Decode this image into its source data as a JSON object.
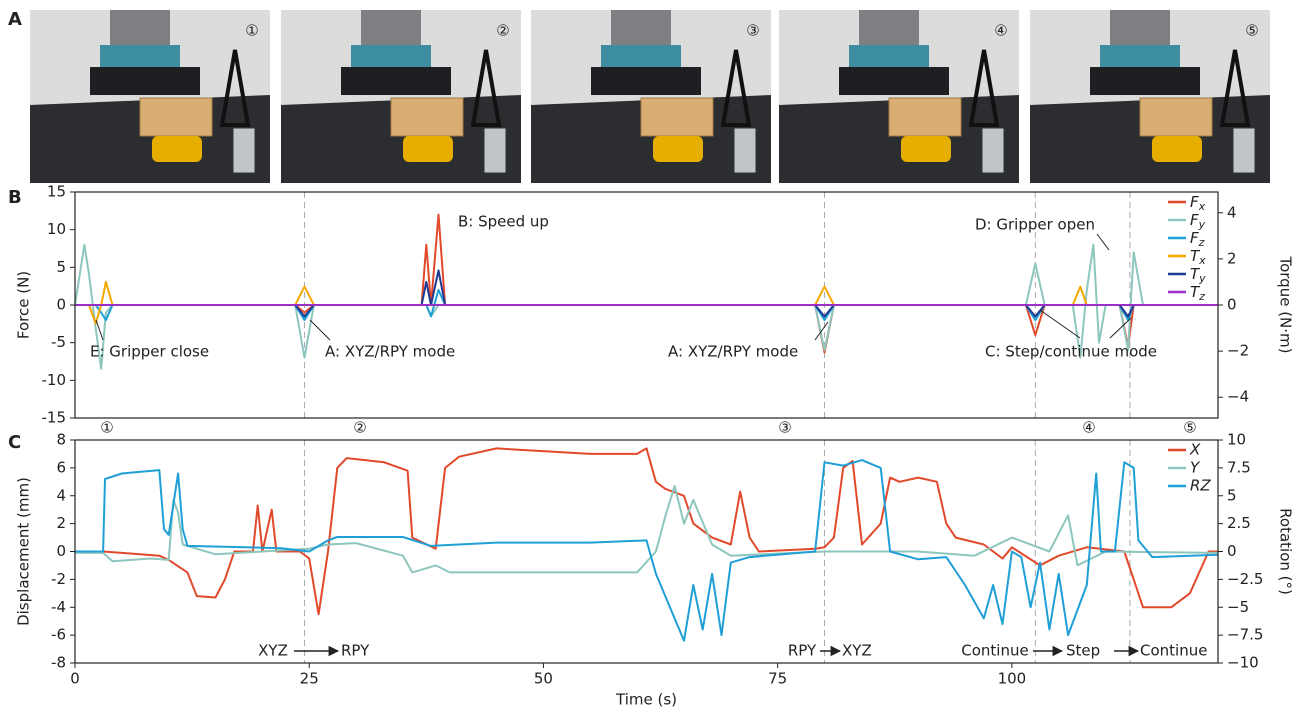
{
  "photos": {
    "label": "A",
    "frames": [
      "①",
      "②",
      "③",
      "④",
      "⑤"
    ]
  },
  "chart_data": [
    {
      "type": "line",
      "panel_label": "B",
      "y_label": "Force (N)",
      "y2_label": "Torque (N·m)",
      "xlim": [
        0,
        122
      ],
      "ylim": [
        -15,
        15
      ],
      "yticks": [
        -15,
        -10,
        -5,
        0,
        5,
        10,
        15
      ],
      "y2lim": [
        -4.9,
        4.9
      ],
      "y2ticks": [
        {
          "value": -4,
          "label": "−4"
        },
        {
          "value": -2,
          "label": "−2"
        },
        0,
        2,
        4
      ],
      "legend": "upper right",
      "vlines": [
        24.5,
        80,
        102.5,
        112.6
      ],
      "annotations": [
        "B: Speed up",
        "D: Gripper open",
        "E: Gripper close",
        "A: XYZ/RPY mode",
        "A: XYZ/RPY mode",
        "C: Step/continue mode"
      ],
      "x": [
        0,
        1,
        1.5,
        2.2,
        2.8,
        3.3,
        4,
        23.5,
        24.5,
        25.5,
        37,
        37.5,
        38,
        38.8,
        39.5,
        79,
        80,
        81,
        101.5,
        102.5,
        103.5,
        106.5,
        107.3,
        108,
        108.7,
        109.3,
        110,
        111.5,
        112.4,
        113,
        114,
        122
      ],
      "series": [
        {
          "name": "Fx",
          "color": "#e2492b",
          "values": [
            0,
            0,
            0,
            0,
            0,
            0,
            0,
            0,
            -1,
            0,
            0,
            8,
            0,
            12,
            0,
            0,
            -6.3,
            0,
            0,
            -4,
            0,
            0,
            0,
            0,
            0,
            0,
            0,
            0,
            -5.5,
            0,
            0,
            0
          ]
        },
        {
          "name": "Fy",
          "color": "#8cc6bd",
          "values": [
            0,
            8,
            4,
            -3,
            -8.5,
            -1,
            0,
            0,
            -7,
            0,
            0,
            0,
            -1.5,
            0,
            0,
            0,
            -6,
            0,
            0,
            5.5,
            0,
            0,
            -7,
            2,
            8,
            -5,
            0,
            0,
            -6,
            7,
            0,
            0
          ]
        },
        {
          "name": "Fz",
          "color": "#1e9fd6",
          "values": [
            0,
            0,
            0,
            0,
            -1,
            -2,
            0,
            0,
            -2,
            0,
            0,
            0,
            -1.5,
            2,
            0,
            0,
            -2,
            0,
            0,
            -2,
            0,
            0,
            0,
            0,
            0,
            0,
            0,
            0,
            -2,
            0,
            0,
            0
          ]
        },
        {
          "name": "Tx",
          "color": "#f5a800",
          "axis": "y2",
          "values": [
            0,
            0,
            0,
            -0.8,
            0,
            1,
            0,
            0,
            0.8,
            0,
            0,
            0,
            0,
            0,
            0,
            0,
            0.8,
            0,
            0,
            0,
            0,
            0,
            0.8,
            0,
            0,
            0,
            0,
            0,
            0,
            0,
            0,
            0
          ]
        },
        {
          "name": "Ty",
          "color": "#1f3a93",
          "axis": "y2",
          "values": [
            0,
            0,
            0,
            0,
            0,
            0,
            0,
            0,
            -0.5,
            0,
            0,
            1,
            0,
            1.5,
            0,
            0,
            -0.5,
            0,
            0,
            -0.5,
            0,
            0,
            0,
            0,
            0,
            0,
            0,
            0,
            -0.5,
            0,
            0,
            0
          ]
        },
        {
          "name": "Tz",
          "color": "#9b30c8",
          "axis": "y2",
          "values": [
            0,
            0,
            0,
            0,
            0,
            0,
            0,
            0,
            0,
            0,
            0,
            0,
            0,
            0,
            0,
            0,
            0,
            0,
            0,
            0,
            0,
            0,
            0,
            0,
            0,
            0,
            0,
            0,
            0,
            0,
            0,
            0
          ]
        }
      ]
    },
    {
      "type": "line",
      "panel_label": "C",
      "y_label": "Displacement (mm)",
      "y2_label": "Rotation (°)",
      "x_label": "Time (s)",
      "xlim": [
        0,
        122
      ],
      "xticks": [
        0,
        25,
        50,
        75,
        100
      ],
      "ylim": [
        -8,
        8
      ],
      "yticks": [
        -8,
        -6,
        -4,
        -2,
        0,
        2,
        4,
        6,
        8
      ],
      "y2lim": [
        -10,
        10
      ],
      "y2ticks": [
        {
          "value": -10,
          "label": "−10"
        },
        {
          "value": -7.5,
          "label": "−7.5"
        },
        {
          "value": -5,
          "label": "−5"
        },
        {
          "value": -2.5,
          "label": "−2.5"
        },
        0,
        2.5,
        5,
        7.5,
        10
      ],
      "legend": "upper right",
      "vlines": [
        24.5,
        80,
        102.5,
        112.6
      ],
      "stage_labels": [
        "①",
        "②",
        "③",
        "④",
        "⑤"
      ],
      "transitions": [
        "XYZ",
        "RPY",
        "RPY",
        "XYZ",
        "Continue",
        "Step",
        "Continue"
      ],
      "series": [
        {
          "name": "X",
          "color": "#e2492b",
          "x": [
            0,
            3,
            5,
            9,
            10,
            12,
            13,
            15,
            16,
            17,
            19,
            19.5,
            20,
            21,
            21.5,
            24,
            25,
            26,
            27,
            28,
            29,
            33,
            35.5,
            36,
            38.5,
            39.5,
            41,
            45,
            55,
            60,
            61,
            62,
            63,
            65,
            66,
            68,
            70,
            71,
            72,
            73,
            79,
            80,
            81,
            82,
            83,
            84,
            86,
            87,
            88,
            90,
            92,
            93,
            94,
            97,
            99,
            100,
            103,
            105,
            108,
            112,
            113,
            114,
            117,
            119,
            121,
            122
          ],
          "values": [
            0,
            0,
            -0.1,
            -0.3,
            -0.6,
            -1.5,
            -3.2,
            -3.3,
            -2,
            0,
            0,
            3.3,
            0,
            3,
            0,
            0,
            -0.5,
            -4.5,
            0,
            6,
            6.7,
            6.4,
            5.8,
            1,
            0.2,
            6,
            6.8,
            7.4,
            7,
            7,
            7.4,
            5,
            4.5,
            4,
            2,
            1,
            0.5,
            4.3,
            1,
            0,
            0.2,
            0.3,
            1,
            6,
            6.5,
            0.5,
            2,
            5.3,
            5,
            5.3,
            5,
            2,
            1,
            0.5,
            -0.5,
            0.3,
            -1,
            -0.3,
            0.3,
            0,
            -2,
            -4,
            -4,
            -3,
            0,
            0
          ]
        },
        {
          "name": "Y",
          "color": "#8cc6bd",
          "x": [
            0,
            3,
            4,
            8,
            10,
            10.5,
            11,
            11.5,
            15,
            25,
            27,
            30,
            35,
            36,
            38.5,
            40,
            50,
            60,
            62,
            63,
            64,
            65,
            66,
            68,
            70,
            80,
            90,
            96,
            100,
            104,
            106,
            107,
            110,
            122
          ],
          "values": [
            -0.1,
            -0.1,
            -0.7,
            -0.5,
            -0.6,
            3.7,
            2.8,
            0.5,
            -0.2,
            0.2,
            0.5,
            0.6,
            -0.3,
            -1.5,
            -1,
            -1.5,
            -1.5,
            -1.5,
            0,
            2.5,
            4.7,
            2,
            3.7,
            0.5,
            -0.3,
            0,
            0,
            -0.3,
            1,
            0,
            2.6,
            -1,
            0,
            -0.1
          ]
        },
        {
          "name": "RZ",
          "color": "#1e9fd6",
          "axis": "y2",
          "x": [
            0,
            3,
            3.2,
            5,
            9,
            9.5,
            10,
            11,
            11.5,
            12,
            22,
            25,
            27,
            28,
            35,
            38,
            45,
            55,
            61,
            62,
            64,
            65,
            66,
            67,
            68,
            69,
            70,
            72,
            79,
            80,
            82,
            84,
            86,
            87,
            90,
            93,
            95,
            97,
            98,
            99,
            100,
            101,
            102,
            103,
            104,
            105,
            106,
            108,
            109,
            109.5,
            111,
            112,
            113,
            113.5,
            115,
            122
          ],
          "values": [
            0,
            0,
            6.5,
            7,
            7.3,
            2,
            1.5,
            7,
            2,
            0.5,
            0.3,
            0,
            1,
            1.3,
            1.3,
            0.5,
            0.8,
            0.8,
            1,
            -2,
            -6,
            -8,
            -3,
            -7,
            -2,
            -7.5,
            -1,
            -0.5,
            0,
            8,
            7.7,
            8.2,
            7.5,
            0,
            -0.7,
            -0.5,
            -3,
            -6,
            -3,
            -6.5,
            0,
            -0.5,
            -5,
            -1,
            -7,
            -2,
            -7.5,
            -3,
            7,
            0,
            0,
            8,
            7.5,
            1,
            -0.5,
            -0.3
          ]
        }
      ]
    }
  ]
}
